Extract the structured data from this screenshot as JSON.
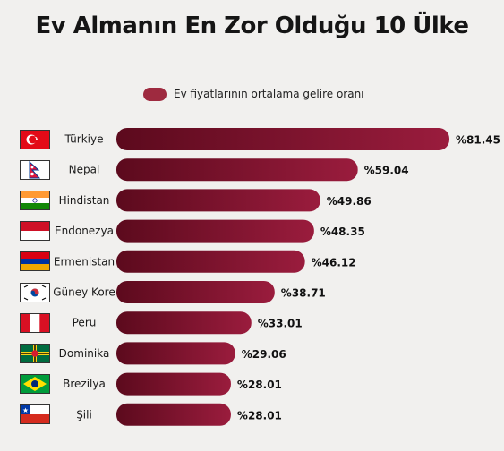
{
  "title": "Ev Almanın En Zor Olduğu 10 Ülke",
  "colors": {
    "bar_dark": "#5c0a1d",
    "bar_light": "#9a1c3d",
    "legend": "#9e2a3f"
  },
  "chart_data": {
    "type": "bar",
    "orientation": "horizontal",
    "legend": {
      "label": "Ev fiyatlarının ortalama gelire oranı",
      "placement": "top"
    },
    "categories": [
      "Türkiye",
      "Nepal",
      "Hindistan",
      "Endonezya",
      "Ermenistan",
      "Güney Kore",
      "Peru",
      "Dominika",
      "Brezilya",
      "Şili"
    ],
    "flags": [
      "turkey-flag",
      "nepal-flag",
      "india-flag",
      "indonesia-flag",
      "armenia-flag",
      "south-korea-flag",
      "peru-flag",
      "dominica-flag",
      "brazil-flag",
      "chile-flag"
    ],
    "values": [
      81.45,
      59.04,
      49.86,
      48.35,
      46.12,
      38.71,
      33.01,
      29.06,
      28.01,
      28.01
    ],
    "value_labels": [
      "%81.45",
      "%59.04",
      "%49.86",
      "%48.35",
      "%46.12",
      "%38.71",
      "%33.01",
      "%29.06",
      "%28.01",
      "%28.01"
    ],
    "xlim": [
      0,
      81.45
    ],
    "grid": false
  }
}
